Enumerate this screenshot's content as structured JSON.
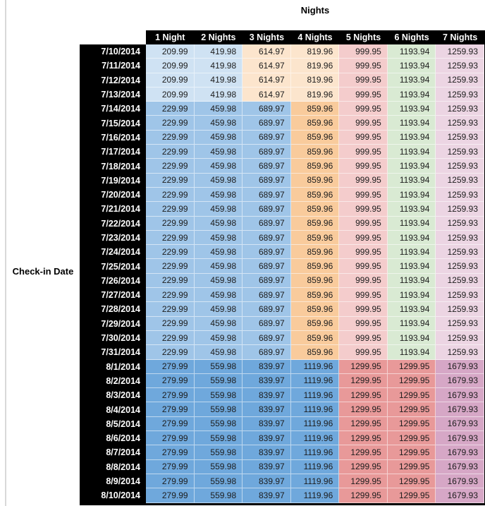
{
  "chart_data": {
    "type": "table",
    "title": "Nights",
    "row_axis_label": "Check-in Date",
    "columns": [
      "1 Night",
      "2 Nights",
      "3 Nights",
      "4 Nights",
      "5 Nights",
      "6 Nights",
      "7 Nights"
    ],
    "rows": [
      {
        "date": "7/10/2014",
        "group": "early_july",
        "values": [
          "209.99",
          "419.98",
          "614.97",
          "819.96",
          "999.95",
          "1193.94",
          "1259.93"
        ]
      },
      {
        "date": "7/11/2014",
        "group": "early_july",
        "values": [
          "209.99",
          "419.98",
          "614.97",
          "819.96",
          "999.95",
          "1193.94",
          "1259.93"
        ]
      },
      {
        "date": "7/12/2014",
        "group": "early_july",
        "values": [
          "209.99",
          "419.98",
          "614.97",
          "819.96",
          "999.95",
          "1193.94",
          "1259.93"
        ]
      },
      {
        "date": "7/13/2014",
        "group": "early_july",
        "values": [
          "209.99",
          "419.98",
          "614.97",
          "819.96",
          "999.95",
          "1193.94",
          "1259.93"
        ]
      },
      {
        "date": "7/14/2014",
        "group": "mid_july",
        "values": [
          "229.99",
          "459.98",
          "689.97",
          "859.96",
          "999.95",
          "1193.94",
          "1259.93"
        ]
      },
      {
        "date": "7/15/2014",
        "group": "mid_july",
        "values": [
          "229.99",
          "459.98",
          "689.97",
          "859.96",
          "999.95",
          "1193.94",
          "1259.93"
        ]
      },
      {
        "date": "7/16/2014",
        "group": "mid_july",
        "values": [
          "229.99",
          "459.98",
          "689.97",
          "859.96",
          "999.95",
          "1193.94",
          "1259.93"
        ]
      },
      {
        "date": "7/17/2014",
        "group": "mid_july",
        "values": [
          "229.99",
          "459.98",
          "689.97",
          "859.96",
          "999.95",
          "1193.94",
          "1259.93"
        ]
      },
      {
        "date": "7/18/2014",
        "group": "mid_july",
        "values": [
          "229.99",
          "459.98",
          "689.97",
          "859.96",
          "999.95",
          "1193.94",
          "1259.93"
        ]
      },
      {
        "date": "7/19/2014",
        "group": "mid_july",
        "values": [
          "229.99",
          "459.98",
          "689.97",
          "859.96",
          "999.95",
          "1193.94",
          "1259.93"
        ]
      },
      {
        "date": "7/20/2014",
        "group": "mid_july",
        "values": [
          "229.99",
          "459.98",
          "689.97",
          "859.96",
          "999.95",
          "1193.94",
          "1259.93"
        ]
      },
      {
        "date": "7/21/2014",
        "group": "mid_july",
        "values": [
          "229.99",
          "459.98",
          "689.97",
          "859.96",
          "999.95",
          "1193.94",
          "1259.93"
        ]
      },
      {
        "date": "7/22/2014",
        "group": "mid_july",
        "values": [
          "229.99",
          "459.98",
          "689.97",
          "859.96",
          "999.95",
          "1193.94",
          "1259.93"
        ]
      },
      {
        "date": "7/23/2014",
        "group": "mid_july",
        "values": [
          "229.99",
          "459.98",
          "689.97",
          "859.96",
          "999.95",
          "1193.94",
          "1259.93"
        ]
      },
      {
        "date": "7/24/2014",
        "group": "mid_july",
        "values": [
          "229.99",
          "459.98",
          "689.97",
          "859.96",
          "999.95",
          "1193.94",
          "1259.93"
        ]
      },
      {
        "date": "7/25/2014",
        "group": "mid_july",
        "values": [
          "229.99",
          "459.98",
          "689.97",
          "859.96",
          "999.95",
          "1193.94",
          "1259.93"
        ]
      },
      {
        "date": "7/26/2014",
        "group": "mid_july",
        "values": [
          "229.99",
          "459.98",
          "689.97",
          "859.96",
          "999.95",
          "1193.94",
          "1259.93"
        ]
      },
      {
        "date": "7/27/2014",
        "group": "mid_july",
        "values": [
          "229.99",
          "459.98",
          "689.97",
          "859.96",
          "999.95",
          "1193.94",
          "1259.93"
        ]
      },
      {
        "date": "7/28/2014",
        "group": "mid_july",
        "values": [
          "229.99",
          "459.98",
          "689.97",
          "859.96",
          "999.95",
          "1193.94",
          "1259.93"
        ]
      },
      {
        "date": "7/29/2014",
        "group": "mid_july",
        "values": [
          "229.99",
          "459.98",
          "689.97",
          "859.96",
          "999.95",
          "1193.94",
          "1259.93"
        ]
      },
      {
        "date": "7/30/2014",
        "group": "mid_july",
        "values": [
          "229.99",
          "459.98",
          "689.97",
          "859.96",
          "999.95",
          "1193.94",
          "1259.93"
        ]
      },
      {
        "date": "7/31/2014",
        "group": "mid_july",
        "values": [
          "229.99",
          "459.98",
          "689.97",
          "859.96",
          "999.95",
          "1193.94",
          "1259.93"
        ]
      },
      {
        "date": "8/1/2014",
        "group": "august",
        "values": [
          "279.99",
          "559.98",
          "839.97",
          "1119.96",
          "1299.95",
          "1299.95",
          "1679.93"
        ]
      },
      {
        "date": "8/2/2014",
        "group": "august",
        "values": [
          "279.99",
          "559.98",
          "839.97",
          "1119.96",
          "1299.95",
          "1299.95",
          "1679.93"
        ]
      },
      {
        "date": "8/3/2014",
        "group": "august",
        "values": [
          "279.99",
          "559.98",
          "839.97",
          "1119.96",
          "1299.95",
          "1299.95",
          "1679.93"
        ]
      },
      {
        "date": "8/4/2014",
        "group": "august",
        "values": [
          "279.99",
          "559.98",
          "839.97",
          "1119.96",
          "1299.95",
          "1299.95",
          "1679.93"
        ]
      },
      {
        "date": "8/5/2014",
        "group": "august",
        "values": [
          "279.99",
          "559.98",
          "839.97",
          "1119.96",
          "1299.95",
          "1299.95",
          "1679.93"
        ]
      },
      {
        "date": "8/6/2014",
        "group": "august",
        "values": [
          "279.99",
          "559.98",
          "839.97",
          "1119.96",
          "1299.95",
          "1299.95",
          "1679.93"
        ]
      },
      {
        "date": "8/7/2014",
        "group": "august",
        "values": [
          "279.99",
          "559.98",
          "839.97",
          "1119.96",
          "1299.95",
          "1299.95",
          "1679.93"
        ]
      },
      {
        "date": "8/8/2014",
        "group": "august",
        "values": [
          "279.99",
          "559.98",
          "839.97",
          "1119.96",
          "1299.95",
          "1299.95",
          "1679.93"
        ]
      },
      {
        "date": "8/9/2014",
        "group": "august",
        "values": [
          "279.99",
          "559.98",
          "839.97",
          "1119.96",
          "1299.95",
          "1299.95",
          "1679.93"
        ]
      },
      {
        "date": "8/10/2014",
        "group": "august",
        "values": [
          "279.99",
          "559.98",
          "839.97",
          "1119.96",
          "1299.95",
          "1299.95",
          "1679.93"
        ]
      }
    ]
  },
  "colors": {
    "palette": {
      "light_blue": "#cfe2f3",
      "cream": "#fce5cd",
      "medium_blue": "#9fc5e8",
      "orange": "#f9cb9c",
      "light_pink": "#f4cccc",
      "light_green": "#d9ead3",
      "light_mauve": "#ecd5e3",
      "strong_blue": "#6fa8dc",
      "salmon": "#e89999",
      "mauve": "#d6a7c6",
      "header_bg": "#000000",
      "header_text": "#ffffff"
    },
    "group_cell_colors": {
      "early_july": [
        "light_blue",
        "light_blue",
        "cream",
        "cream",
        "light_pink",
        "light_green",
        "light_mauve"
      ],
      "mid_july": [
        "medium_blue",
        "medium_blue",
        "medium_blue",
        "orange",
        "light_pink",
        "light_green",
        "light_mauve"
      ],
      "august": [
        "strong_blue",
        "strong_blue",
        "strong_blue",
        "strong_blue",
        "salmon",
        "salmon",
        "mauve"
      ]
    }
  }
}
